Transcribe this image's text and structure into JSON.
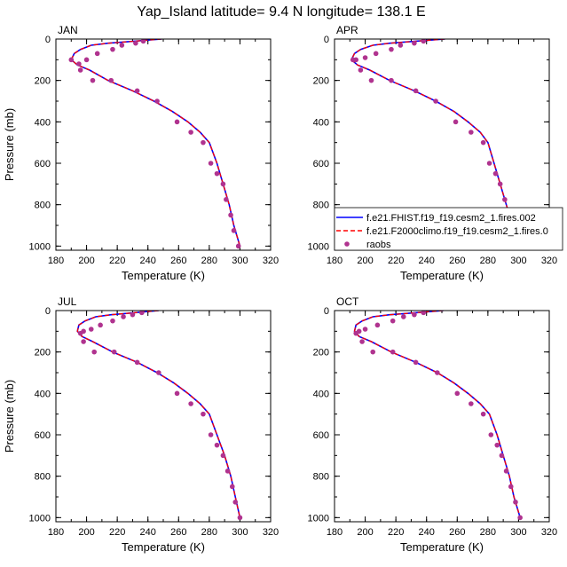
{
  "page": {
    "title": "Yap_Island  latitude= 9.4 N longitude= 138.1 E"
  },
  "chart_data": [
    {
      "type": "line",
      "panel": "JAN",
      "xlabel": "Temperature (K)",
      "ylabel": "Pressure (mb)",
      "xlim": [
        180,
        320
      ],
      "ylim": [
        1020,
        0
      ],
      "xticks": [
        "180",
        "200",
        "220",
        "240",
        "260",
        "280",
        "300",
        "320"
      ],
      "yticks": [
        "0",
        "200",
        "400",
        "600",
        "800",
        "1000"
      ],
      "series": [
        {
          "name": "f.e21.FHIST.f19_f19.cesm2_1.fires.002",
          "color": "#0000ff",
          "style": "solid",
          "x": [
            249,
            232,
            214,
            203,
            196,
            192,
            190,
            194,
            202,
            214,
            230,
            244,
            256,
            266,
            274,
            280,
            285,
            289,
            293,
            296,
            300
          ],
          "y": [
            0,
            10,
            20,
            30,
            50,
            70,
            100,
            125,
            150,
            200,
            250,
            300,
            350,
            400,
            450,
            500,
            600,
            700,
            800,
            900,
            1000
          ]
        },
        {
          "name": "f.e21.F2000climo.f19_f19.cesm2_1.fires.0",
          "color": "#ff0000",
          "style": "dashed",
          "x": [
            249,
            232,
            214,
            203,
            196,
            192,
            190,
            194,
            202,
            214,
            230,
            244,
            256,
            266,
            274,
            280,
            285,
            289,
            293,
            296,
            300
          ],
          "y": [
            0,
            10,
            20,
            30,
            50,
            70,
            100,
            125,
            150,
            200,
            250,
            300,
            350,
            400,
            450,
            500,
            600,
            700,
            800,
            900,
            1000
          ]
        },
        {
          "name": "raobs",
          "color": "#b0338f",
          "style": "markers",
          "x": [
            237,
            232,
            223,
            217,
            207,
            200,
            195,
            190,
            196,
            204,
            216,
            233,
            246,
            259,
            268,
            276,
            281,
            285,
            289,
            291,
            294,
            296,
            299
          ],
          "y": [
            10,
            20,
            30,
            50,
            70,
            100,
            120,
            100,
            150,
            200,
            200,
            250,
            300,
            400,
            450,
            500,
            600,
            650,
            700,
            775,
            850,
            925,
            1000
          ]
        }
      ]
    },
    {
      "type": "line",
      "panel": "APR",
      "xlabel": "Temperature (K)",
      "ylabel": "",
      "xlim": [
        180,
        320
      ],
      "ylim": [
        1020,
        0
      ],
      "xticks": [
        "180",
        "200",
        "220",
        "240",
        "260",
        "280",
        "300",
        "320"
      ],
      "yticks": [
        "0",
        "200",
        "400",
        "600",
        "800",
        "1000"
      ],
      "legend": "bottom-right",
      "series": [
        {
          "name": "f.e21.FHIST.f19_f19.cesm2_1.fires.002",
          "color": "#0000ff",
          "style": "solid",
          "x": [
            252,
            234,
            216,
            205,
            197,
            193,
            191,
            195,
            203,
            216,
            232,
            246,
            258,
            267,
            275,
            280,
            284,
            288,
            292,
            296,
            300
          ],
          "y": [
            0,
            10,
            20,
            30,
            50,
            70,
            100,
            125,
            150,
            200,
            250,
            300,
            350,
            400,
            450,
            500,
            600,
            700,
            800,
            900,
            1000
          ]
        },
        {
          "name": "f.e21.F2000climo.f19_f19.cesm2_1.fires.0",
          "color": "#ff0000",
          "style": "dashed",
          "x": [
            252,
            234,
            216,
            205,
            197,
            193,
            191,
            195,
            203,
            216,
            232,
            246,
            258,
            267,
            275,
            280,
            284,
            288,
            292,
            296,
            300
          ],
          "y": [
            0,
            10,
            20,
            30,
            50,
            70,
            100,
            125,
            150,
            200,
            250,
            300,
            350,
            400,
            450,
            500,
            600,
            700,
            800,
            900,
            1000
          ]
        },
        {
          "name": "raobs",
          "color": "#b0338f",
          "style": "markers",
          "x": [
            238,
            232,
            223,
            217,
            207,
            200,
            194,
            192,
            197,
            204,
            217,
            233,
            246,
            259,
            269,
            277,
            281,
            285,
            288,
            291,
            294,
            296,
            301
          ],
          "y": [
            10,
            20,
            30,
            50,
            70,
            90,
            100,
            100,
            150,
            200,
            200,
            250,
            300,
            400,
            450,
            500,
            600,
            650,
            700,
            775,
            850,
            925,
            1000
          ]
        }
      ]
    },
    {
      "type": "line",
      "panel": "JUL",
      "xlabel": "Temperature (K)",
      "ylabel": "Pressure (mb)",
      "xlim": [
        180,
        320
      ],
      "ylim": [
        1020,
        0
      ],
      "xticks": [
        "180",
        "200",
        "220",
        "240",
        "260",
        "280",
        "300",
        "320"
      ],
      "yticks": [
        "0",
        "200",
        "400",
        "600",
        "800",
        "1000"
      ],
      "series": [
        {
          "name": "f.e21.FHIST.f19_f19.cesm2_1.fires.002",
          "color": "#0000ff",
          "style": "solid",
          "x": [
            247,
            232,
            216,
            206,
            199,
            195,
            194,
            197,
            204,
            217,
            233,
            246,
            257,
            266,
            274,
            280,
            285,
            290,
            294,
            297,
            300
          ],
          "y": [
            0,
            10,
            20,
            30,
            50,
            70,
            100,
            125,
            150,
            200,
            250,
            300,
            350,
            400,
            450,
            500,
            600,
            700,
            800,
            900,
            1000
          ]
        },
        {
          "name": "f.e21.F2000climo.f19_f19.cesm2_1.fires.0",
          "color": "#ff0000",
          "style": "dashed",
          "x": [
            247,
            232,
            216,
            206,
            199,
            195,
            194,
            197,
            204,
            217,
            233,
            246,
            257,
            266,
            274,
            280,
            285,
            290,
            294,
            297,
            300
          ],
          "y": [
            0,
            10,
            20,
            30,
            50,
            70,
            100,
            125,
            150,
            200,
            250,
            300,
            350,
            400,
            450,
            500,
            600,
            700,
            800,
            900,
            1000
          ]
        },
        {
          "name": "raobs",
          "color": "#b0338f",
          "style": "markers",
          "x": [
            236,
            230,
            224,
            217,
            209,
            203,
            198,
            196,
            198,
            205,
            218,
            233,
            247,
            259,
            268,
            276,
            281,
            285,
            289,
            292,
            295,
            297,
            300
          ],
          "y": [
            10,
            20,
            30,
            50,
            70,
            90,
            100,
            110,
            150,
            200,
            200,
            250,
            300,
            400,
            450,
            500,
            600,
            650,
            700,
            775,
            850,
            925,
            1000
          ]
        }
      ]
    },
    {
      "type": "line",
      "panel": "OCT",
      "xlabel": "Temperature (K)",
      "ylabel": "",
      "xlim": [
        180,
        320
      ],
      "ylim": [
        1020,
        0
      ],
      "xticks": [
        "180",
        "200",
        "220",
        "240",
        "260",
        "280",
        "300",
        "320"
      ],
      "yticks": [
        "0",
        "200",
        "400",
        "600",
        "800",
        "1000"
      ],
      "series": [
        {
          "name": "f.e21.FHIST.f19_f19.cesm2_1.fires.002",
          "color": "#0000ff",
          "style": "solid",
          "x": [
            251,
            234,
            216,
            205,
            198,
            194,
            193,
            196,
            204,
            217,
            233,
            247,
            258,
            267,
            275,
            281,
            286,
            290,
            294,
            297,
            301
          ],
          "y": [
            0,
            10,
            20,
            30,
            50,
            70,
            100,
            125,
            150,
            200,
            250,
            300,
            350,
            400,
            450,
            500,
            600,
            700,
            800,
            900,
            1000
          ]
        },
        {
          "name": "f.e21.F2000climo.f19_f19.cesm2_1.fires.0",
          "color": "#ff0000",
          "style": "dashed",
          "x": [
            251,
            234,
            216,
            205,
            198,
            194,
            193,
            196,
            204,
            217,
            233,
            247,
            258,
            267,
            275,
            281,
            286,
            290,
            294,
            297,
            301
          ],
          "y": [
            0,
            10,
            20,
            30,
            50,
            70,
            100,
            125,
            150,
            200,
            250,
            300,
            350,
            400,
            450,
            500,
            600,
            700,
            800,
            900,
            1000
          ]
        },
        {
          "name": "raobs",
          "color": "#b0338f",
          "style": "markers",
          "x": [
            238,
            232,
            225,
            218,
            208,
            200,
            196,
            194,
            198,
            205,
            218,
            233,
            247,
            260,
            269,
            277,
            282,
            286,
            289,
            292,
            295,
            298,
            301
          ],
          "y": [
            10,
            20,
            30,
            50,
            70,
            90,
            100,
            110,
            150,
            200,
            200,
            250,
            300,
            400,
            450,
            500,
            600,
            650,
            700,
            775,
            850,
            925,
            1000
          ]
        }
      ]
    }
  ]
}
